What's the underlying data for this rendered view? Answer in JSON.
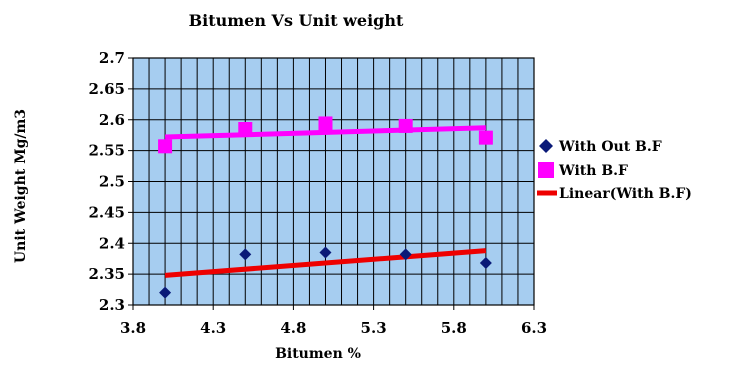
{
  "chart_data": {
    "type": "scatter",
    "title": "Bitumen Vs Unit weight",
    "xlabel": "Bitumen %",
    "ylabel": "Unit Weight Mg/m3",
    "xlim": [
      3.8,
      6.3
    ],
    "ylim": [
      2.3,
      2.7
    ],
    "x_ticks": [
      "3.8",
      "4.3",
      "4.8",
      "5.3",
      "5.8",
      "6.3"
    ],
    "y_ticks": [
      "2.7",
      "2.65",
      "2.6",
      "2.55",
      "2.5",
      "2.45",
      "2.4",
      "2.35",
      "2.3"
    ],
    "plot_background": "#a6cdf0",
    "grid": true,
    "legend_position": "right",
    "series": [
      {
        "name": "With Out B.F",
        "marker": "diamond",
        "color": "#0a1a78",
        "x": [
          4.0,
          4.5,
          5.0,
          5.5,
          6.0
        ],
        "y": [
          2.32,
          2.382,
          2.385,
          2.382,
          2.368
        ]
      },
      {
        "name": "With B.F",
        "marker": "square",
        "color": "#ff00ff",
        "x": [
          4.0,
          4.5,
          5.0,
          5.5,
          6.0
        ],
        "y": [
          2.557,
          2.585,
          2.594,
          2.59,
          2.571
        ]
      }
    ],
    "trendlines": [
      {
        "name": "Linear(With B.F)",
        "color": "#ff00ff",
        "x": [
          4.0,
          6.0
        ],
        "y": [
          2.572,
          2.587
        ],
        "in_legend": true
      },
      {
        "color": "#ee0000",
        "x": [
          4.0,
          6.0
        ],
        "y": [
          2.348,
          2.388
        ],
        "in_legend": false
      }
    ],
    "legend_line_color": "#ee0000"
  }
}
